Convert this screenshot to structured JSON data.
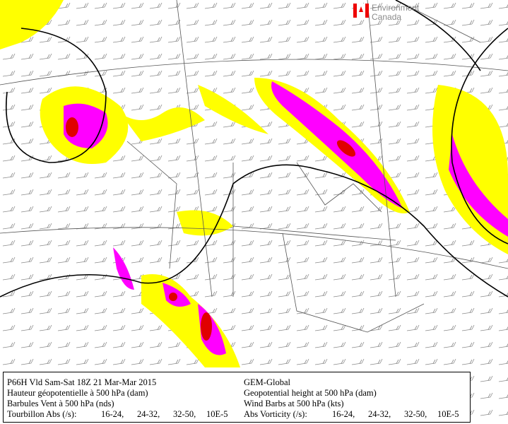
{
  "logo": {
    "line1": "Environment",
    "line2": "Canada"
  },
  "legend": {
    "fr": {
      "run": "P66H Vld Sam-Sat 18Z 21 Mar-Mar 2015",
      "height": "Hauteur géopotentielle à 500 hPa (dam)",
      "wind": "Barbules Vent à 500 hPa (nds)",
      "vorticity": "Tourbillon Abs (/s):"
    },
    "en": {
      "run": "GEM-Global",
      "height": "Geopotential height at 500 hPa (dam)",
      "wind": "Wind Barbs at 500 hPa (kts)",
      "vorticity": "Abs Vorticity (/s):"
    },
    "ranges": [
      {
        "label": "16-24,",
        "color": "#8b8b1a"
      },
      {
        "label": "24-32,",
        "color": "#e000e0"
      },
      {
        "label": "32-50,",
        "color": "#e00000"
      },
      {
        "label": "10E-5",
        "color": "#000000"
      }
    ]
  }
}
